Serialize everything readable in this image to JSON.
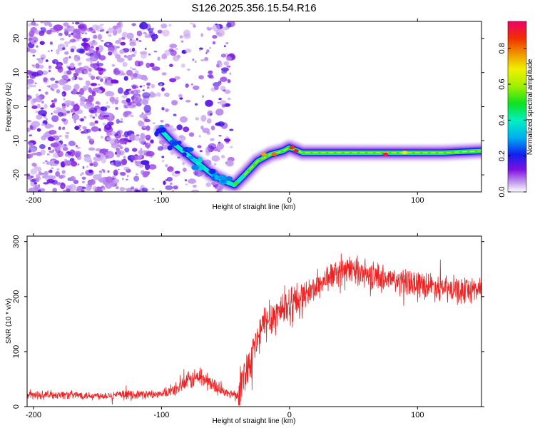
{
  "title": "S126.2025.356.15.54.R16",
  "chart_data": [
    {
      "type": "heatmap",
      "title": "S126.2025.356.15.54.R16",
      "xlabel": "Height of straight line (km)",
      "ylabel": "Frequency (Hz)",
      "xlim": [
        -205,
        150
      ],
      "ylim": [
        -25,
        25
      ],
      "xticks": [
        -200,
        -100,
        0,
        100
      ],
      "yticks": [
        -20,
        -10,
        0,
        10,
        20
      ],
      "colorbar": {
        "label": "Normalized spectral amplitude",
        "range": [
          0,
          0.95
        ],
        "ticks": [
          0.0,
          0.2,
          0.4,
          0.6,
          0.8
        ],
        "tick_labels": [
          "0.0",
          "0.2",
          "0.4",
          "0.6",
          "0.8"
        ]
      },
      "noise_region_x": [
        -205,
        -45
      ],
      "ridge_path": [
        {
          "x": -100,
          "y": -7
        },
        {
          "x": -90,
          "y": -11
        },
        {
          "x": -80,
          "y": -14
        },
        {
          "x": -70,
          "y": -17
        },
        {
          "x": -60,
          "y": -20
        },
        {
          "x": -50,
          "y": -22
        },
        {
          "x": -43,
          "y": -23
        },
        {
          "x": -35,
          "y": -20
        },
        {
          "x": -25,
          "y": -16
        },
        {
          "x": -15,
          "y": -14
        },
        {
          "x": -5,
          "y": -13
        },
        {
          "x": 0,
          "y": -12
        },
        {
          "x": 10,
          "y": -13.5
        },
        {
          "x": 30,
          "y": -13.5
        },
        {
          "x": 60,
          "y": -13.5
        },
        {
          "x": 90,
          "y": -13.5
        },
        {
          "x": 120,
          "y": -13.5
        },
        {
          "x": 150,
          "y": -13
        }
      ],
      "hot_spots": [
        {
          "x": -42,
          "y": -22.5,
          "amp": 0.55
        },
        {
          "x": -20,
          "y": -14,
          "amp": 0.8
        },
        {
          "x": -12,
          "y": -14,
          "amp": 0.85
        },
        {
          "x": 2,
          "y": -12,
          "amp": 0.9
        },
        {
          "x": 5,
          "y": -13,
          "amp": 0.95
        },
        {
          "x": 75,
          "y": -14,
          "amp": 0.95
        },
        {
          "x": 90,
          "y": -13.5,
          "amp": 0.7
        }
      ]
    },
    {
      "type": "line",
      "xlabel": "Height of straight line (km)",
      "ylabel": "SNR (10 * v/v)",
      "xlim": [
        -205,
        150
      ],
      "ylim": [
        0,
        310
      ],
      "xticks": [
        -200,
        -100,
        0,
        100
      ],
      "yticks": [
        0,
        100,
        200,
        300
      ],
      "series": [
        {
          "name": "SNR",
          "color": "#ee2222",
          "x": [
            -205,
            -180,
            -150,
            -120,
            -100,
            -90,
            -80,
            -70,
            -60,
            -50,
            -40,
            -35,
            -30,
            -25,
            -20,
            -15,
            -10,
            -5,
            0,
            10,
            20,
            30,
            40,
            50,
            60,
            70,
            80,
            90,
            100,
            110,
            120,
            130,
            140,
            150
          ],
          "y": [
            20,
            22,
            20,
            22,
            22,
            30,
            45,
            55,
            40,
            25,
            22,
            60,
            90,
            120,
            150,
            160,
            170,
            180,
            185,
            200,
            215,
            235,
            245,
            250,
            240,
            235,
            230,
            225,
            225,
            220,
            215,
            210,
            212,
            215
          ]
        }
      ]
    }
  ]
}
